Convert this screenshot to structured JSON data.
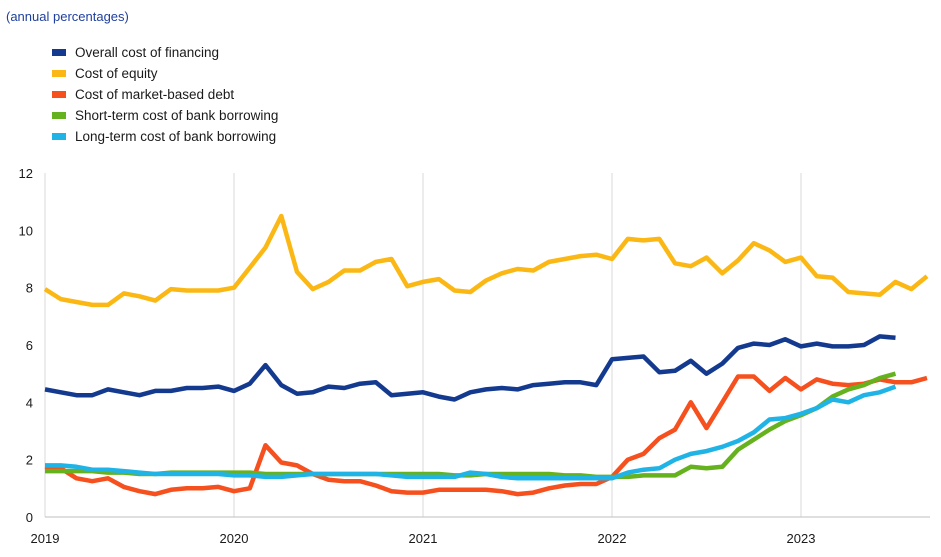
{
  "subtitle": "(annual percentages)",
  "legend": [
    {
      "label": "Overall cost of financing",
      "color": "#143a8f"
    },
    {
      "label": "Cost of equity",
      "color": "#fbb814"
    },
    {
      "label": "Cost of market-based debt",
      "color": "#f5501e"
    },
    {
      "label": "Short-term cost of bank borrowing",
      "color": "#66b21e"
    },
    {
      "label": "Long-term cost of bank borrowing",
      "color": "#20b4e6"
    }
  ],
  "chart_data": {
    "type": "line",
    "title": "",
    "xlabel": "",
    "ylabel": "",
    "ylim": [
      0,
      12
    ],
    "yticks": [
      0,
      2,
      4,
      6,
      8,
      10,
      12
    ],
    "xticks": [
      "2019",
      "2020",
      "2021",
      "2022",
      "2023"
    ],
    "grid": "vertical lines at year starts",
    "x": [
      "2019-01",
      "2019-02",
      "2019-03",
      "2019-04",
      "2019-05",
      "2019-06",
      "2019-07",
      "2019-08",
      "2019-09",
      "2019-10",
      "2019-11",
      "2019-12",
      "2020-01",
      "2020-02",
      "2020-03",
      "2020-04",
      "2020-05",
      "2020-06",
      "2020-07",
      "2020-08",
      "2020-09",
      "2020-10",
      "2020-11",
      "2020-12",
      "2021-01",
      "2021-02",
      "2021-03",
      "2021-04",
      "2021-05",
      "2021-06",
      "2021-07",
      "2021-08",
      "2021-09",
      "2021-10",
      "2021-11",
      "2021-12",
      "2022-01",
      "2022-02",
      "2022-03",
      "2022-04",
      "2022-05",
      "2022-06",
      "2022-07",
      "2022-08",
      "2022-09",
      "2022-10",
      "2022-11",
      "2022-12",
      "2023-01",
      "2023-02",
      "2023-03",
      "2023-04",
      "2023-05",
      "2023-06",
      "2023-07",
      "2023-08",
      "2023-09"
    ],
    "series": [
      {
        "name": "Overall cost of financing",
        "color": "#143a8f",
        "values": [
          4.45,
          4.35,
          4.25,
          4.25,
          4.45,
          4.35,
          4.25,
          4.4,
          4.4,
          4.5,
          4.5,
          4.55,
          4.4,
          4.65,
          5.3,
          4.6,
          4.3,
          4.35,
          4.55,
          4.5,
          4.65,
          4.7,
          4.25,
          4.3,
          4.35,
          4.2,
          4.1,
          4.35,
          4.45,
          4.5,
          4.45,
          4.6,
          4.65,
          4.7,
          4.7,
          4.6,
          5.5,
          5.55,
          5.6,
          5.05,
          5.1,
          5.45,
          5.0,
          5.35,
          5.9,
          6.05,
          6.0,
          6.2,
          5.95,
          6.05,
          5.95,
          5.95,
          6.0,
          6.3,
          6.25,
          null,
          null
        ]
      },
      {
        "name": "Cost of equity",
        "color": "#fbb814",
        "values": [
          7.95,
          7.6,
          7.5,
          7.4,
          7.4,
          7.8,
          7.7,
          7.55,
          7.95,
          7.9,
          7.9,
          7.9,
          8.0,
          8.7,
          9.4,
          10.5,
          8.55,
          7.95,
          8.2,
          8.6,
          8.6,
          8.9,
          9.0,
          8.05,
          8.2,
          8.3,
          7.9,
          7.85,
          8.25,
          8.5,
          8.65,
          8.6,
          8.9,
          9.0,
          9.1,
          9.15,
          9.0,
          9.7,
          9.65,
          9.7,
          8.85,
          8.75,
          9.05,
          8.5,
          8.95,
          9.55,
          9.3,
          8.9,
          9.05,
          8.4,
          8.35,
          7.85,
          7.8,
          7.75,
          8.2,
          7.95,
          8.4
        ]
      },
      {
        "name": "Cost of market-based debt",
        "color": "#f5501e",
        "values": [
          1.75,
          1.7,
          1.35,
          1.25,
          1.35,
          1.05,
          0.9,
          0.8,
          0.95,
          1.0,
          1.0,
          1.05,
          0.9,
          1.0,
          2.5,
          1.9,
          1.8,
          1.5,
          1.3,
          1.25,
          1.25,
          1.1,
          0.9,
          0.85,
          0.85,
          0.95,
          0.95,
          0.95,
          0.95,
          0.9,
          0.8,
          0.85,
          1.0,
          1.1,
          1.15,
          1.15,
          1.4,
          2.0,
          2.2,
          2.75,
          3.05,
          4.0,
          3.1,
          4.0,
          4.9,
          4.9,
          4.4,
          4.85,
          4.45,
          4.8,
          4.65,
          4.6,
          4.65,
          4.8,
          4.7,
          4.7,
          4.85
        ]
      },
      {
        "name": "Short-term cost of bank borrowing",
        "color": "#66b21e",
        "values": [
          1.6,
          1.6,
          1.6,
          1.6,
          1.55,
          1.55,
          1.5,
          1.5,
          1.55,
          1.55,
          1.55,
          1.55,
          1.55,
          1.55,
          1.5,
          1.5,
          1.5,
          1.5,
          1.5,
          1.5,
          1.5,
          1.5,
          1.5,
          1.5,
          1.5,
          1.5,
          1.45,
          1.45,
          1.5,
          1.5,
          1.5,
          1.5,
          1.5,
          1.45,
          1.45,
          1.4,
          1.4,
          1.4,
          1.45,
          1.45,
          1.45,
          1.75,
          1.7,
          1.75,
          2.35,
          2.7,
          3.05,
          3.35,
          3.55,
          3.8,
          4.2,
          4.45,
          4.6,
          4.85,
          5.0,
          null,
          null
        ]
      },
      {
        "name": "Long-term cost of bank borrowing",
        "color": "#20b4e6",
        "values": [
          1.8,
          1.8,
          1.75,
          1.65,
          1.65,
          1.6,
          1.55,
          1.5,
          1.5,
          1.5,
          1.5,
          1.5,
          1.45,
          1.45,
          1.4,
          1.4,
          1.45,
          1.5,
          1.5,
          1.5,
          1.5,
          1.5,
          1.45,
          1.4,
          1.4,
          1.4,
          1.4,
          1.55,
          1.5,
          1.4,
          1.35,
          1.35,
          1.35,
          1.35,
          1.35,
          1.35,
          1.35,
          1.55,
          1.65,
          1.7,
          2.0,
          2.2,
          2.3,
          2.45,
          2.65,
          2.95,
          3.4,
          3.45,
          3.6,
          3.8,
          4.1,
          4.0,
          4.25,
          4.35,
          4.55,
          null,
          null
        ]
      }
    ]
  }
}
